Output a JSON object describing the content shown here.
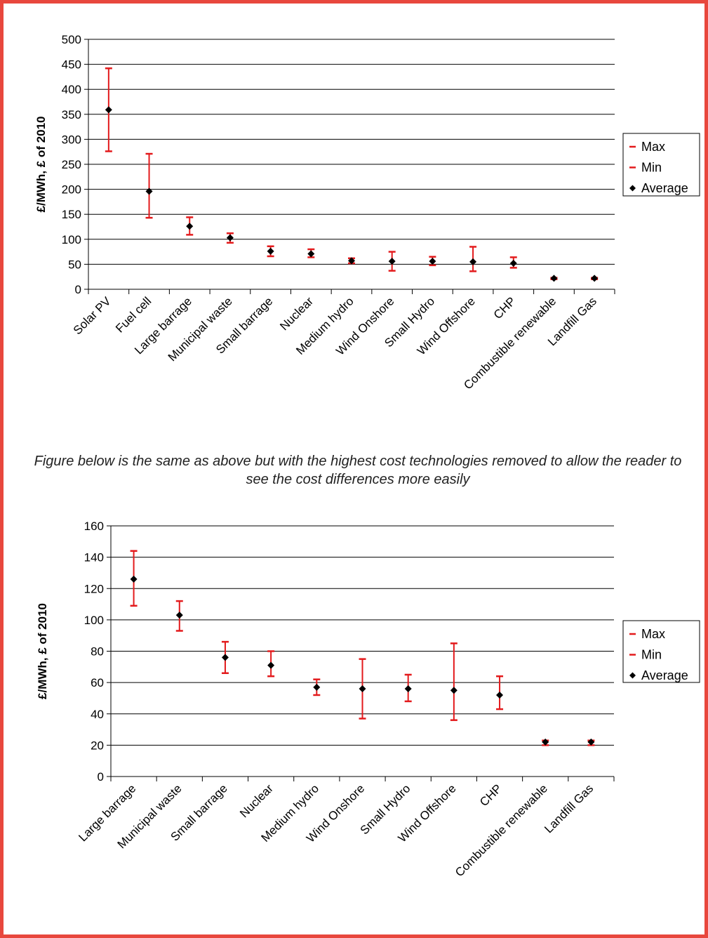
{
  "caption": "Figure below is the same as above but with the highest cost technologies removed to allow the reader to see the cost differences more easily",
  "colors": {
    "border": "#e8473d",
    "error_bar": "#e31a1c",
    "marker": "#000000"
  },
  "chart_data": [
    {
      "type": "scatter",
      "ylabel": "£/MWh, £ of 2010",
      "ylim": [
        0,
        500
      ],
      "yticks": [
        0,
        50,
        100,
        150,
        200,
        250,
        300,
        350,
        400,
        450,
        500
      ],
      "grid": true,
      "legend": {
        "placement": "right",
        "entries": [
          "Max",
          "Min",
          "Average"
        ]
      },
      "categories": [
        "Solar PV",
        "Fuel cell",
        "Large barrage",
        "Municipal waste",
        "Small barrage",
        "Nuclear",
        "Medium hydro",
        "Wind Onshore",
        "Small Hydro",
        "Wind Offshore",
        "CHP",
        "Combustible renewable",
        "Landfill Gas"
      ],
      "series": [
        {
          "name": "Max",
          "values": [
            442,
            271,
            144,
            112,
            86,
            80,
            62,
            75,
            65,
            85,
            64,
            23,
            23
          ]
        },
        {
          "name": "Min",
          "values": [
            276,
            143,
            109,
            93,
            66,
            64,
            52,
            37,
            48,
            36,
            43,
            20,
            20
          ]
        },
        {
          "name": "Average",
          "values": [
            359,
            196,
            126,
            103,
            76,
            71,
            57,
            56,
            56,
            55,
            52,
            22,
            22
          ]
        }
      ]
    },
    {
      "type": "scatter",
      "ylabel": "£/MWh, £ of 2010",
      "ylim": [
        0,
        160
      ],
      "yticks": [
        0,
        20,
        40,
        60,
        80,
        100,
        120,
        140,
        160
      ],
      "grid": true,
      "legend": {
        "placement": "right",
        "entries": [
          "Max",
          "Min",
          "Average"
        ]
      },
      "categories": [
        "Large barrage",
        "Municipal waste",
        "Small barrage",
        "Nuclear",
        "Medium hydro",
        "Wind Onshore",
        "Small Hydro",
        "Wind Offshore",
        "CHP",
        "Combustible renewable",
        "Landfill Gas"
      ],
      "series": [
        {
          "name": "Max",
          "values": [
            144,
            112,
            86,
            80,
            62,
            75,
            65,
            85,
            64,
            23,
            23
          ]
        },
        {
          "name": "Min",
          "values": [
            109,
            93,
            66,
            64,
            52,
            37,
            48,
            36,
            43,
            20,
            20
          ]
        },
        {
          "name": "Average",
          "values": [
            126,
            103,
            76,
            71,
            57,
            56,
            56,
            55,
            52,
            22,
            22
          ]
        }
      ]
    }
  ]
}
